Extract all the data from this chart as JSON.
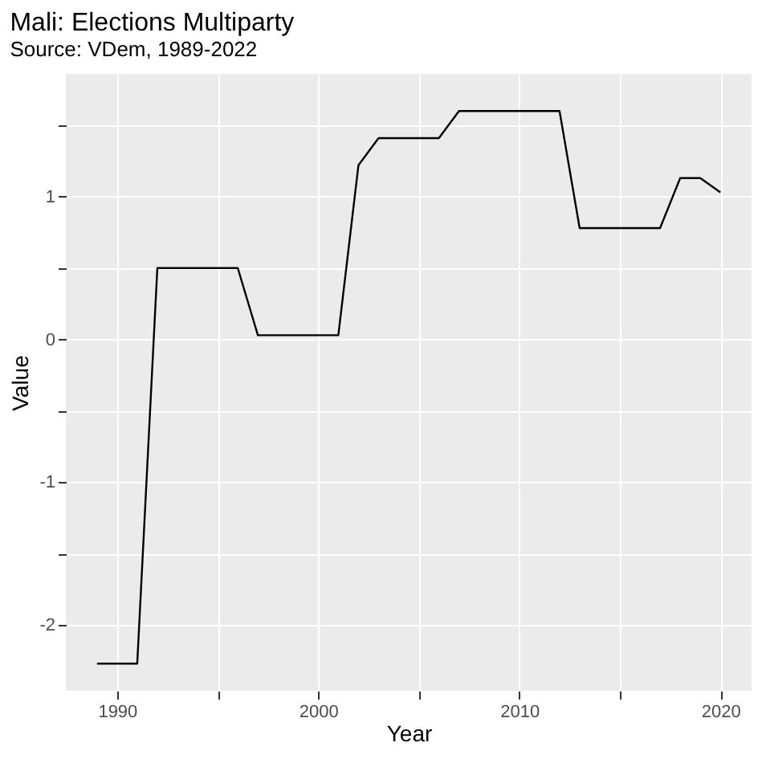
{
  "chart_data": {
    "type": "line",
    "title": "Mali: Elections Multiparty",
    "subtitle": "Source: VDem, 1989-2022",
    "xlabel": "Year",
    "ylabel": "Value",
    "x": [
      1989,
      1990,
      1991,
      1992,
      1993,
      1994,
      1995,
      1996,
      1997,
      1998,
      1999,
      2000,
      2001,
      2002,
      2003,
      2004,
      2005,
      2006,
      2007,
      2008,
      2009,
      2010,
      2011,
      2012,
      2013,
      2014,
      2015,
      2016,
      2017,
      2018,
      2019,
      2020
    ],
    "series": [
      {
        "color": "#000000",
        "values": [
          -2.27,
          -2.27,
          -2.27,
          0.5,
          0.5,
          0.5,
          0.5,
          0.5,
          0.03,
          0.03,
          0.03,
          0.03,
          0.03,
          1.22,
          1.41,
          1.41,
          1.41,
          1.41,
          1.6,
          1.6,
          1.6,
          1.6,
          1.6,
          1.6,
          0.78,
          0.78,
          0.78,
          0.78,
          0.78,
          1.13,
          1.13,
          1.03
        ]
      }
    ],
    "xlim": [
      1987.45,
      2021.55
    ],
    "ylim": [
      -2.46,
      1.86
    ],
    "xticks": [
      1990,
      {
        "value": 1995,
        "label": null
      },
      2000,
      {
        "value": 2005,
        "label": null
      },
      2010,
      {
        "value": 2015,
        "label": null
      },
      2020
    ],
    "yticks": [
      -2,
      {
        "value": -1.5,
        "label": null
      },
      -1,
      {
        "value": -0.5,
        "label": null
      },
      0,
      {
        "value": 0.5,
        "label": null
      },
      1,
      {
        "value": 1.5,
        "label": null
      }
    ],
    "grid": true,
    "marker": "none",
    "line_style": "solid"
  }
}
